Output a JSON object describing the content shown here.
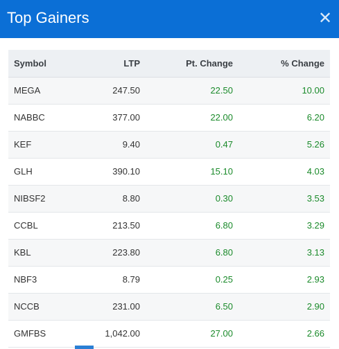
{
  "dialog": {
    "title": "Top Gainers",
    "close_glyph": "✕"
  },
  "table": {
    "headers": {
      "symbol": "Symbol",
      "ltp": "LTP",
      "pt_change": "Pt. Change",
      "pct_change": "% Change"
    },
    "rows": [
      {
        "symbol": "MEGA",
        "ltp": "247.50",
        "pt_change": "22.50",
        "pct_change": "10.00"
      },
      {
        "symbol": "NABBC",
        "ltp": "377.00",
        "pt_change": "22.00",
        "pct_change": "6.20"
      },
      {
        "symbol": "KEF",
        "ltp": "9.40",
        "pt_change": "0.47",
        "pct_change": "5.26"
      },
      {
        "symbol": "GLH",
        "ltp": "390.10",
        "pt_change": "15.10",
        "pct_change": "4.03"
      },
      {
        "symbol": "NIBSF2",
        "ltp": "8.80",
        "pt_change": "0.30",
        "pct_change": "3.53"
      },
      {
        "symbol": "CCBL",
        "ltp": "213.50",
        "pt_change": "6.80",
        "pct_change": "3.29"
      },
      {
        "symbol": "KBL",
        "ltp": "223.80",
        "pt_change": "6.80",
        "pct_change": "3.13"
      },
      {
        "symbol": "NBF3",
        "ltp": "8.79",
        "pt_change": "0.25",
        "pct_change": "2.93"
      },
      {
        "symbol": "NCCB",
        "ltp": "231.00",
        "pt_change": "6.50",
        "pct_change": "2.90"
      },
      {
        "symbol": "GMFBS",
        "ltp": "1,042.00",
        "pt_change": "27.00",
        "pct_change": "2.66"
      }
    ]
  },
  "colors": {
    "header_bg": "#0b6fd6",
    "positive": "#1a8a2a",
    "table_header_bg": "#edf0f3"
  }
}
